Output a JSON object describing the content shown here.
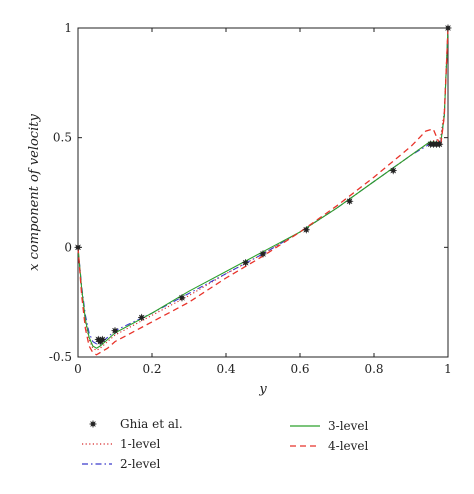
{
  "chart_data": {
    "type": "line",
    "title": "",
    "xlabel": "y",
    "ylabel": "x component of velocity",
    "xlim": [
      0,
      1
    ],
    "ylim": [
      -0.5,
      1
    ],
    "xticks": [
      "0",
      "0.2",
      "0.4",
      "0.6",
      "0.8",
      "1"
    ],
    "yticks": [
      "-0.5",
      "0",
      "0.5",
      "1"
    ],
    "grid": false,
    "legend_position": "bottom",
    "series": [
      {
        "name": "Ghia et al.",
        "style": "markers",
        "color": "#222222",
        "x": [
          0,
          0.055,
          0.06,
          0.066,
          0.1,
          0.172,
          0.281,
          0.453,
          0.5,
          0.617,
          0.734,
          0.852,
          0.953,
          0.961,
          0.969,
          0.977,
          1.0
        ],
        "y": [
          0,
          -0.42,
          -0.43,
          -0.42,
          -0.38,
          -0.32,
          -0.23,
          -0.07,
          -0.03,
          0.08,
          0.21,
          0.35,
          0.47,
          0.47,
          0.47,
          0.47,
          1.0
        ]
      },
      {
        "name": "1-level",
        "style": "dotted",
        "color": "#d62728",
        "x": [
          0,
          0.01,
          0.02,
          0.03,
          0.04,
          0.05,
          0.06,
          0.08,
          0.1,
          0.2,
          0.3,
          0.4,
          0.5,
          0.6,
          0.7,
          0.8,
          0.9,
          0.95,
          0.97,
          0.98,
          0.99,
          1.0
        ],
        "y": [
          0,
          -0.2,
          -0.34,
          -0.42,
          -0.46,
          -0.47,
          -0.46,
          -0.43,
          -0.4,
          -0.31,
          -0.22,
          -0.12,
          -0.03,
          0.07,
          0.18,
          0.3,
          0.42,
          0.48,
          0.49,
          0.5,
          0.62,
          1.0
        ]
      },
      {
        "name": "2-level",
        "style": "dashdot",
        "color": "#3b3bcc",
        "x": [
          0,
          0.01,
          0.02,
          0.03,
          0.04,
          0.05,
          0.06,
          0.08,
          0.1,
          0.2,
          0.3,
          0.4,
          0.5,
          0.6,
          0.7,
          0.8,
          0.9,
          0.95,
          0.97,
          0.98,
          0.99,
          1.0
        ],
        "y": [
          0,
          -0.18,
          -0.31,
          -0.39,
          -0.43,
          -0.44,
          -0.44,
          -0.41,
          -0.38,
          -0.3,
          -0.21,
          -0.12,
          -0.03,
          0.07,
          0.18,
          0.3,
          0.42,
          0.47,
          0.48,
          0.48,
          0.6,
          1.0
        ]
      },
      {
        "name": "3-level",
        "style": "solid",
        "color": "#2ca02c",
        "x": [
          0,
          0.01,
          0.02,
          0.03,
          0.04,
          0.05,
          0.06,
          0.08,
          0.1,
          0.2,
          0.3,
          0.4,
          0.5,
          0.6,
          0.7,
          0.8,
          0.9,
          0.95,
          0.97,
          0.98,
          0.99,
          1.0
        ],
        "y": [
          0,
          -0.19,
          -0.33,
          -0.41,
          -0.45,
          -0.46,
          -0.45,
          -0.42,
          -0.39,
          -0.3,
          -0.2,
          -0.11,
          -0.02,
          0.07,
          0.18,
          0.3,
          0.42,
          0.48,
          0.48,
          0.47,
          0.6,
          1.0
        ]
      },
      {
        "name": "4-level",
        "style": "dashed",
        "color": "#e8332a",
        "x": [
          0,
          0.01,
          0.02,
          0.03,
          0.04,
          0.05,
          0.06,
          0.08,
          0.1,
          0.2,
          0.3,
          0.4,
          0.5,
          0.6,
          0.7,
          0.8,
          0.9,
          0.94,
          0.96,
          0.97,
          0.98,
          0.99,
          1.0
        ],
        "y": [
          0,
          -0.22,
          -0.37,
          -0.45,
          -0.48,
          -0.49,
          -0.48,
          -0.46,
          -0.43,
          -0.34,
          -0.25,
          -0.14,
          -0.04,
          0.07,
          0.19,
          0.32,
          0.46,
          0.53,
          0.54,
          0.5,
          0.46,
          0.6,
          1.0
        ]
      }
    ]
  }
}
